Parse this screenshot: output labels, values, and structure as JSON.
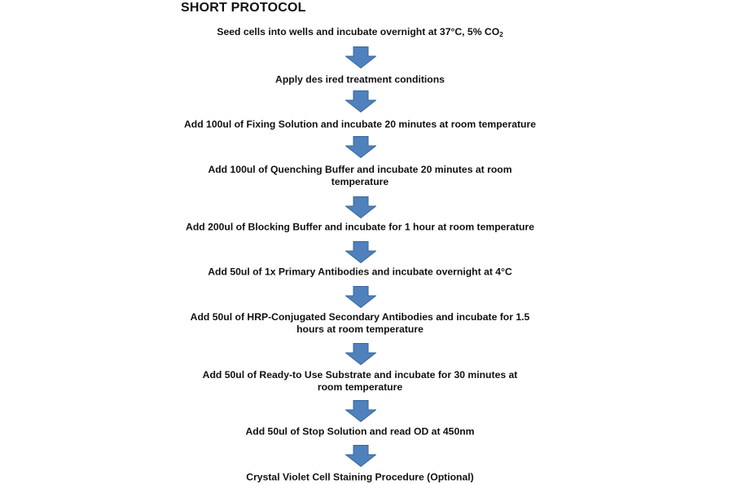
{
  "title": "SHORT PROTOCOL",
  "arrow_color": "#4F81BD",
  "arrow_icon": "down-arrow",
  "steps": [
    {
      "text": "Seed cells into wells and incubate overnight at 37°C, 5% CO",
      "subscript": "2"
    },
    {
      "text": "Apply des ired treatment conditions"
    },
    {
      "text": "Add 100ul of Fixing Solution and incubate 20 minutes at room temperature"
    },
    {
      "text": "Add 100ul of Quenching Buffer and incubate 20 minutes at room temperature"
    },
    {
      "text": "Add 200ul of Blocking Buffer and incubate for 1 hour at room temperature"
    },
    {
      "text": "Add 50ul of 1x Primary Antibodies and incubate overnight at 4°C"
    },
    {
      "text": "Add 50ul of HRP-Conjugated Secondary Antibodies and incubate for 1.5 hours at room temperature"
    },
    {
      "text": "Add 50ul of Ready-to Use Substrate and incubate for 30 minutes at room temperature"
    },
    {
      "text": "Add 50ul of Stop Solution and read OD at 450nm"
    },
    {
      "text": "Crystal Violet Cell Staining Procedure (Optional)"
    }
  ]
}
